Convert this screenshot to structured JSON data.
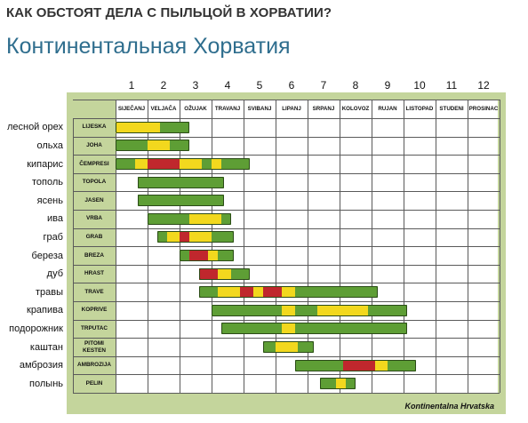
{
  "page": {
    "headline": "КАК ОБСТОЯТ ДЕЛА С ПЫЛЬЦОЙ В ХОРВАТИИ?",
    "subheadline": "Континентальная Хорватия"
  },
  "chart_data": {
    "type": "gantt",
    "title": "",
    "footer": "Kontinentalna Hrvatska",
    "month_numbers": [
      "1",
      "2",
      "3",
      "4",
      "5",
      "6",
      "7",
      "8",
      "9",
      "10",
      "11",
      "12"
    ],
    "months": [
      "SIJEČANJ",
      "VELJAČA",
      "OŽUJAK",
      "TRAVANJ",
      "SVIBANJ",
      "LIPANJ",
      "SRPANJ",
      "KOLOVOZ",
      "RUJAN",
      "LISTOPAD",
      "STUDENI",
      "PROSINAC"
    ],
    "level_colors": {
      "low": "#5e9e35",
      "medium": "#f2d81e",
      "high": "#c0272d"
    },
    "rows": [
      {
        "name_ru": "лесной орех",
        "name_hr": "LIJESKA",
        "segments": [
          [
            1.0,
            2.4,
            "medium"
          ],
          [
            2.4,
            3.3,
            "low"
          ]
        ]
      },
      {
        "name_ru": "ольха",
        "name_hr": "JOHA",
        "segments": [
          [
            1.0,
            2.0,
            "low"
          ],
          [
            2.0,
            2.7,
            "medium"
          ],
          [
            2.7,
            3.3,
            "low"
          ]
        ]
      },
      {
        "name_ru": "кипарис",
        "name_hr": "ČEMPRESI",
        "segments": [
          [
            1.0,
            1.6,
            "low"
          ],
          [
            1.6,
            2.0,
            "medium"
          ],
          [
            2.0,
            3.0,
            "high"
          ],
          [
            3.0,
            3.7,
            "medium"
          ],
          [
            3.7,
            4.0,
            "low"
          ],
          [
            4.0,
            4.3,
            "medium"
          ],
          [
            4.3,
            5.2,
            "low"
          ]
        ]
      },
      {
        "name_ru": "тополь",
        "name_hr": "TOPOLA",
        "segments": [
          [
            1.7,
            4.4,
            "low"
          ]
        ]
      },
      {
        "name_ru": "ясень",
        "name_hr": "JASEN",
        "segments": [
          [
            1.7,
            4.4,
            "low"
          ]
        ]
      },
      {
        "name_ru": "ива",
        "name_hr": "VRBA",
        "segments": [
          [
            2.0,
            3.3,
            "low"
          ],
          [
            3.3,
            4.3,
            "medium"
          ],
          [
            4.3,
            4.6,
            "low"
          ]
        ]
      },
      {
        "name_ru": "граб",
        "name_hr": "GRAB",
        "segments": [
          [
            2.3,
            2.6,
            "low"
          ],
          [
            2.6,
            3.0,
            "medium"
          ],
          [
            3.0,
            3.3,
            "high"
          ],
          [
            3.3,
            4.0,
            "medium"
          ],
          [
            4.0,
            4.7,
            "low"
          ]
        ]
      },
      {
        "name_ru": "береза",
        "name_hr": "BREZA",
        "segments": [
          [
            3.0,
            3.3,
            "low"
          ],
          [
            3.3,
            3.9,
            "high"
          ],
          [
            3.9,
            4.2,
            "medium"
          ],
          [
            4.2,
            4.7,
            "low"
          ]
        ]
      },
      {
        "name_ru": "дуб",
        "name_hr": "HRAST",
        "segments": [
          [
            3.6,
            4.2,
            "high"
          ],
          [
            4.2,
            4.6,
            "medium"
          ],
          [
            4.6,
            5.2,
            "low"
          ]
        ]
      },
      {
        "name_ru": "травы",
        "name_hr": "TRAVE",
        "segments": [
          [
            3.6,
            4.2,
            "low"
          ],
          [
            4.2,
            4.9,
            "medium"
          ],
          [
            4.9,
            5.3,
            "high"
          ],
          [
            5.3,
            5.6,
            "medium"
          ],
          [
            5.6,
            6.2,
            "high"
          ],
          [
            5.6,
            6.2,
            "high"
          ],
          [
            6.2,
            6.6,
            "medium"
          ],
          [
            6.6,
            9.2,
            "low"
          ]
        ]
      },
      {
        "name_ru": "крапива",
        "name_hr": "KOPRIVE",
        "segments": [
          [
            4.0,
            6.2,
            "low"
          ],
          [
            6.2,
            6.6,
            "medium"
          ],
          [
            6.6,
            7.3,
            "low"
          ],
          [
            7.3,
            8.9,
            "medium"
          ],
          [
            8.9,
            10.1,
            "low"
          ]
        ]
      },
      {
        "name_ru": "подорожник",
        "name_hr": "TRPUTAC",
        "segments": [
          [
            4.3,
            6.2,
            "low"
          ],
          [
            6.2,
            6.6,
            "medium"
          ],
          [
            6.6,
            10.1,
            "low"
          ]
        ]
      },
      {
        "name_ru": "каштан",
        "name_hr": "PITOMI KESTEN",
        "segments": [
          [
            5.6,
            6.0,
            "low"
          ],
          [
            6.0,
            6.7,
            "medium"
          ],
          [
            6.7,
            7.2,
            "low"
          ]
        ]
      },
      {
        "name_ru": "амброзия",
        "name_hr": "AMBROZIJA",
        "segments": [
          [
            6.6,
            8.1,
            "low"
          ],
          [
            8.1,
            9.1,
            "high"
          ],
          [
            9.1,
            9.5,
            "medium"
          ],
          [
            9.5,
            10.4,
            "low"
          ]
        ]
      },
      {
        "name_ru": "полынь",
        "name_hr": "PELIN",
        "segments": [
          [
            7.4,
            7.9,
            "low"
          ],
          [
            7.9,
            8.2,
            "medium"
          ],
          [
            8.2,
            8.5,
            "low"
          ]
        ]
      }
    ]
  }
}
